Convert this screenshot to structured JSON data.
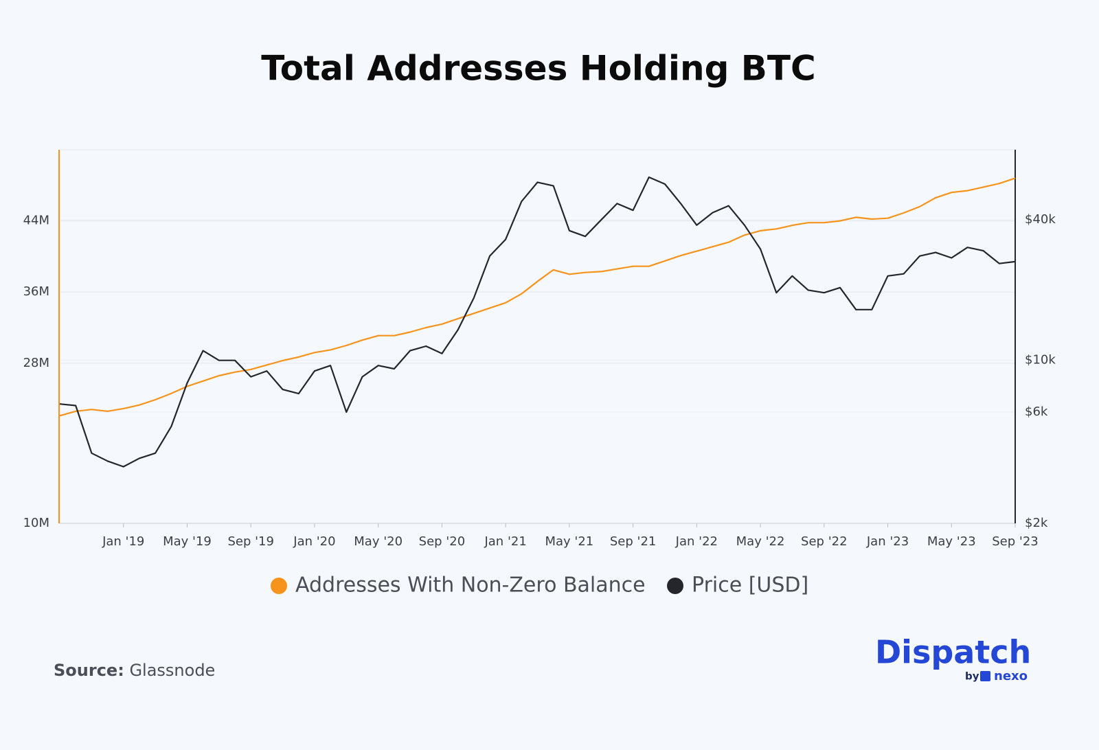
{
  "chart_data": {
    "type": "line",
    "title": "Total Addresses Holding BTC",
    "categories": [
      null,
      null,
      null,
      null,
      "Jan '19",
      null,
      null,
      null,
      "May '19",
      null,
      null,
      null,
      "Sep '19",
      null,
      null,
      null,
      "Jan '20",
      null,
      null,
      null,
      "May '20",
      null,
      null,
      null,
      "Sep '20",
      null,
      null,
      null,
      "Jan '21",
      null,
      null,
      null,
      "May '21",
      null,
      null,
      null,
      "Sep '21",
      null,
      null,
      null,
      "Jan '22",
      null,
      null,
      null,
      "May '22",
      null,
      null,
      null,
      "Sep '22",
      null,
      null,
      null,
      "Jan '23",
      null,
      null,
      null,
      "May '23",
      null,
      null,
      null,
      "Sep '23"
    ],
    "series": [
      {
        "name": "Addresses With Non-Zero Balance",
        "color": "#f7931a",
        "axis": "y",
        "values": [
          22.1,
          22.6,
          22.8,
          22.6,
          22.9,
          23.3,
          23.9,
          24.6,
          25.4,
          26.0,
          26.6,
          27.0,
          27.3,
          27.8,
          28.3,
          28.7,
          29.2,
          29.5,
          30.0,
          30.6,
          31.1,
          31.1,
          31.5,
          32.0,
          32.4,
          33.0,
          33.6,
          34.2,
          34.8,
          35.8,
          37.2,
          38.5,
          38.0,
          38.2,
          38.3,
          38.6,
          38.9,
          38.9,
          39.5,
          40.1,
          40.6,
          41.1,
          41.6,
          42.4,
          42.9,
          43.1,
          43.5,
          43.8,
          43.8,
          44.0,
          44.4,
          44.2,
          44.3,
          44.9,
          45.6,
          46.6,
          47.2,
          47.4,
          47.8,
          48.2,
          48.8
        ]
      },
      {
        "name": "Price [USD]",
        "color": "#24262b",
        "axis": "y2",
        "values": [
          6500,
          6400,
          4000,
          3700,
          3500,
          3800,
          4000,
          5200,
          8000,
          11000,
          10000,
          10000,
          8500,
          9000,
          7500,
          7200,
          9000,
          9500,
          6000,
          8500,
          9500,
          9200,
          11000,
          11500,
          10700,
          13500,
          18500,
          28000,
          33000,
          48000,
          58000,
          56000,
          36000,
          34000,
          40000,
          47000,
          44000,
          61000,
          57000,
          47000,
          38000,
          43000,
          46000,
          38000,
          30000,
          19500,
          23000,
          20000,
          19500,
          20500,
          16500,
          16500,
          23000,
          23500,
          28000,
          29000,
          27500,
          30500,
          29500,
          26000,
          26500
        ]
      }
    ],
    "ylim": [
      10,
      52
    ],
    "yticks": [
      {
        "value": 10,
        "label": "10M"
      },
      {
        "value": 28,
        "label": "28M"
      },
      {
        "value": 36,
        "label": "36M"
      },
      {
        "value": 44,
        "label": "44M"
      }
    ],
    "y2lim": [
      2000,
      80000
    ],
    "y2scale": "log",
    "y2ticks": [
      {
        "value": 2000,
        "label": "$2k"
      },
      {
        "value": 6000,
        "label": "$6k"
      },
      {
        "value": 10000,
        "label": "$10k"
      },
      {
        "value": 40000,
        "label": "$40k"
      }
    ],
    "grid": true,
    "legend": "bottom",
    "source_label": "Source:",
    "source": "Glassnode"
  },
  "logo": {
    "name": "Dispatch",
    "by": "by",
    "partner": "nexo"
  }
}
